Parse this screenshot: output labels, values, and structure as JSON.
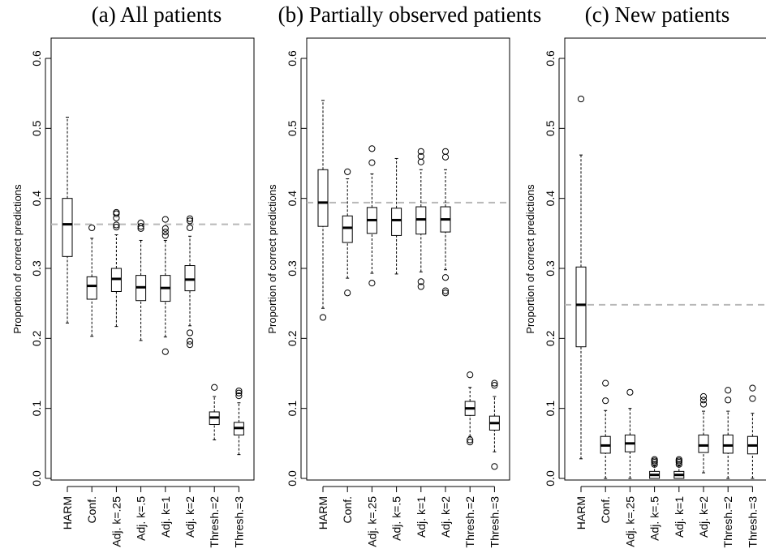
{
  "chart_data": [
    {
      "type": "box",
      "title": "(a) All patients",
      "ylabel": "Proportion of correct predictions",
      "ylim": [
        0,
        0.6
      ],
      "yticks": [
        "0.0",
        "0.1",
        "0.2",
        "0.3",
        "0.4",
        "0.5",
        "0.6"
      ],
      "reference_line": 0.363,
      "categories": [
        "HARM",
        "Conf.",
        "Adj. k=.25",
        "Adj. k=.5",
        "Adj. k=1",
        "Adj. k=2",
        "Thresh.=2",
        "Thresh.=3"
      ],
      "boxes": [
        {
          "min": 0.222,
          "q1": 0.317,
          "median": 0.363,
          "q3": 0.4,
          "max": 0.516,
          "outliers": []
        },
        {
          "min": 0.203,
          "q1": 0.256,
          "median": 0.275,
          "q3": 0.288,
          "max": 0.343,
          "outliers": [
            0.358
          ]
        },
        {
          "min": 0.217,
          "q1": 0.267,
          "median": 0.285,
          "q3": 0.3,
          "max": 0.348,
          "outliers": [
            0.359,
            0.362,
            0.372,
            0.378,
            0.38
          ]
        },
        {
          "min": 0.197,
          "q1": 0.254,
          "median": 0.273,
          "q3": 0.29,
          "max": 0.34,
          "outliers": [
            0.357,
            0.36,
            0.365
          ]
        },
        {
          "min": 0.202,
          "q1": 0.253,
          "median": 0.272,
          "q3": 0.29,
          "max": 0.34,
          "outliers": [
            0.181,
            0.347,
            0.352,
            0.357,
            0.37
          ]
        },
        {
          "min": 0.218,
          "q1": 0.268,
          "median": 0.284,
          "q3": 0.304,
          "max": 0.346,
          "outliers": [
            0.191,
            0.196,
            0.208,
            0.358,
            0.368,
            0.371
          ]
        },
        {
          "min": 0.055,
          "q1": 0.077,
          "median": 0.087,
          "q3": 0.095,
          "max": 0.117,
          "outliers": [
            0.13
          ]
        },
        {
          "min": 0.034,
          "q1": 0.062,
          "median": 0.072,
          "q3": 0.08,
          "max": 0.108,
          "outliers": [
            0.118,
            0.122,
            0.125
          ]
        }
      ]
    },
    {
      "type": "box",
      "title": "(b) Partially observed patients",
      "ylabel": "Proportion of correct predictions",
      "ylim": [
        0,
        0.6
      ],
      "yticks": [
        "0.0",
        "0.1",
        "0.2",
        "0.3",
        "0.4",
        "0.5",
        "0.6"
      ],
      "reference_line": 0.394,
      "categories": [
        "HARM",
        "Conf.",
        "Adj. k=.25",
        "Adj. k=.5",
        "Adj. k=1",
        "Adj. k=2",
        "Thresh.=2",
        "Thresh.=3"
      ],
      "boxes": [
        {
          "min": 0.243,
          "q1": 0.36,
          "median": 0.394,
          "q3": 0.441,
          "max": 0.54,
          "outliers": [
            0.23
          ]
        },
        {
          "min": 0.286,
          "q1": 0.337,
          "median": 0.358,
          "q3": 0.375,
          "max": 0.428,
          "outliers": [
            0.265,
            0.438
          ]
        },
        {
          "min": 0.293,
          "q1": 0.35,
          "median": 0.369,
          "q3": 0.387,
          "max": 0.435,
          "outliers": [
            0.279,
            0.451,
            0.471
          ]
        },
        {
          "min": 0.292,
          "q1": 0.347,
          "median": 0.369,
          "q3": 0.386,
          "max": 0.457,
          "outliers": []
        },
        {
          "min": 0.295,
          "q1": 0.349,
          "median": 0.37,
          "q3": 0.388,
          "max": 0.441,
          "outliers": [
            0.274,
            0.281,
            0.452,
            0.46,
            0.467
          ]
        },
        {
          "min": 0.298,
          "q1": 0.352,
          "median": 0.37,
          "q3": 0.388,
          "max": 0.441,
          "outliers": [
            0.265,
            0.268,
            0.287,
            0.459,
            0.467
          ]
        },
        {
          "min": 0.06,
          "q1": 0.09,
          "median": 0.1,
          "q3": 0.11,
          "max": 0.13,
          "outliers": [
            0.052,
            0.055,
            0.148
          ]
        },
        {
          "min": 0.038,
          "q1": 0.069,
          "median": 0.079,
          "q3": 0.089,
          "max": 0.117,
          "outliers": [
            0.017,
            0.133,
            0.136
          ]
        }
      ]
    },
    {
      "type": "box",
      "title": "(c) New patients",
      "ylabel": "Proportion of correct predictions",
      "ylim": [
        0,
        0.6
      ],
      "yticks": [
        "0.0",
        "0.1",
        "0.2",
        "0.3",
        "0.4",
        "0.5",
        "0.6"
      ],
      "reference_line": 0.248,
      "categories": [
        "HARM",
        "Conf.",
        "Adj. k=.25",
        "Adj. k=.5",
        "Adj. k=1",
        "Adj. k=2",
        "Thresh.=2",
        "Thresh.=3"
      ],
      "boxes": [
        {
          "min": 0.028,
          "q1": 0.188,
          "median": 0.248,
          "q3": 0.302,
          "max": 0.462,
          "outliers": [
            0.542
          ]
        },
        {
          "min": 0.0,
          "q1": 0.036,
          "median": 0.047,
          "q3": 0.06,
          "max": 0.097,
          "outliers": [
            0.111,
            0.136
          ]
        },
        {
          "min": 0.0,
          "q1": 0.038,
          "median": 0.05,
          "q3": 0.062,
          "max": 0.1,
          "outliers": [
            0.123
          ]
        },
        {
          "min": 0.0,
          "q1": 0.0,
          "median": 0.005,
          "q3": 0.01,
          "max": 0.018,
          "outliers": [
            0.02,
            0.023,
            0.025,
            0.027
          ]
        },
        {
          "min": 0.0,
          "q1": 0.0,
          "median": 0.005,
          "q3": 0.01,
          "max": 0.018,
          "outliers": [
            0.02,
            0.023,
            0.025,
            0.027
          ]
        },
        {
          "min": 0.008,
          "q1": 0.037,
          "median": 0.047,
          "q3": 0.062,
          "max": 0.096,
          "outliers": [
            0.106,
            0.112,
            0.117
          ]
        },
        {
          "min": 0.0,
          "q1": 0.036,
          "median": 0.047,
          "q3": 0.062,
          "max": 0.096,
          "outliers": [
            0.112,
            0.126
          ]
        },
        {
          "min": 0.0,
          "q1": 0.035,
          "median": 0.047,
          "q3": 0.06,
          "max": 0.093,
          "outliers": [
            0.114,
            0.129
          ]
        }
      ]
    }
  ]
}
